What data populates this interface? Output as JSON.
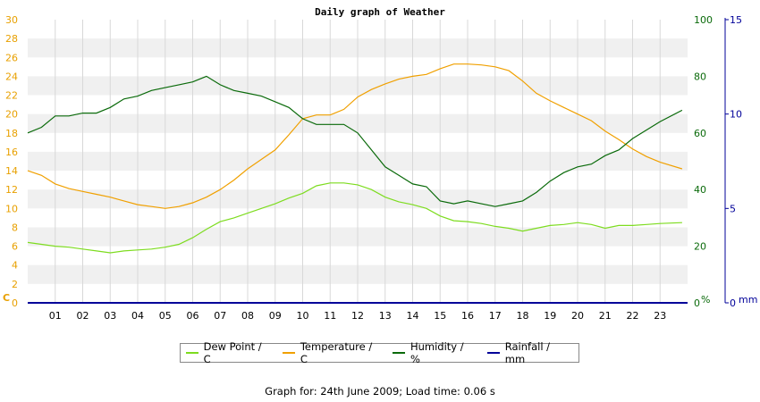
{
  "chart_data": {
    "type": "line",
    "title": "Daily graph of Weather",
    "x_ticks": [
      "01",
      "02",
      "03",
      "04",
      "05",
      "06",
      "07",
      "08",
      "09",
      "10",
      "11",
      "12",
      "13",
      "14",
      "15",
      "16",
      "17",
      "18",
      "19",
      "20",
      "21",
      "22",
      "23"
    ],
    "x_range": [
      0,
      24
    ],
    "grid": true,
    "legend_position": "bottom-center",
    "axes": {
      "left": {
        "unit_label": "C",
        "range": [
          0,
          30
        ],
        "ticks": [
          "0",
          "2",
          "4",
          "6",
          "8",
          "10",
          "12",
          "14",
          "16",
          "18",
          "20",
          "22",
          "24",
          "26",
          "28",
          "30"
        ],
        "color": "#e8a000"
      },
      "right1": {
        "unit_label": "%",
        "range": [
          0,
          100
        ],
        "ticks": [
          "0",
          "20",
          "40",
          "60",
          "80",
          "100"
        ],
        "color": "#0a6a0a"
      },
      "right2": {
        "unit_label": "mm",
        "range": [
          0,
          15
        ],
        "ticks": [
          "0",
          "5",
          "10",
          "15"
        ],
        "color": "#000099"
      }
    },
    "series": [
      {
        "name": "Dew Point / C",
        "axis": "left",
        "color": "#7ddc1f",
        "x": [
          0,
          0.5,
          1,
          1.5,
          2,
          2.5,
          3,
          3.5,
          4,
          4.5,
          5,
          5.5,
          6,
          6.5,
          7,
          7.5,
          8,
          8.5,
          9,
          9.5,
          10,
          10.5,
          11,
          11.5,
          12,
          12.5,
          13,
          13.5,
          14,
          14.5,
          15,
          15.5,
          16,
          16.5,
          17,
          17.5,
          18,
          18.5,
          19,
          19.5,
          20,
          20.5,
          21,
          21.5,
          22,
          22.5,
          23,
          23.8
        ],
        "y": [
          6.4,
          6.2,
          6.0,
          5.9,
          5.7,
          5.5,
          5.3,
          5.5,
          5.6,
          5.7,
          5.9,
          6.2,
          6.9,
          7.8,
          8.6,
          9.0,
          9.5,
          10.0,
          10.5,
          11.1,
          11.6,
          12.4,
          12.7,
          12.7,
          12.5,
          12.0,
          11.2,
          10.7,
          10.4,
          10.0,
          9.2,
          8.7,
          8.6,
          8.4,
          8.1,
          7.9,
          7.6,
          7.9,
          8.2,
          8.3,
          8.5,
          8.3,
          7.9,
          8.2,
          8.2,
          8.3,
          8.4,
          8.5
        ]
      },
      {
        "name": "Temperature / C",
        "axis": "left",
        "color": "#f0a000",
        "x": [
          0,
          0.5,
          1,
          1.5,
          2,
          2.5,
          3,
          3.5,
          4,
          4.5,
          5,
          5.5,
          6,
          6.5,
          7,
          7.5,
          8,
          8.5,
          9,
          9.5,
          10,
          10.5,
          11,
          11.5,
          12,
          12.5,
          13,
          13.5,
          14,
          14.5,
          15,
          15.5,
          16,
          16.5,
          17,
          17.5,
          18,
          18.5,
          19,
          19.5,
          20,
          20.5,
          21,
          21.5,
          22,
          22.5,
          23,
          23.8
        ],
        "y": [
          14.0,
          13.5,
          12.6,
          12.1,
          11.8,
          11.5,
          11.2,
          10.8,
          10.4,
          10.2,
          10.0,
          10.2,
          10.6,
          11.2,
          12.0,
          13.0,
          14.2,
          15.2,
          16.2,
          17.8,
          19.5,
          19.9,
          19.9,
          20.5,
          21.8,
          22.6,
          23.2,
          23.7,
          24.0,
          24.2,
          24.8,
          25.3,
          25.3,
          25.2,
          25.0,
          24.6,
          23.5,
          22.2,
          21.4,
          20.7,
          20.0,
          19.3,
          18.2,
          17.3,
          16.3,
          15.5,
          14.9,
          14.2
        ]
      },
      {
        "name": "Humidity / %",
        "axis": "right1",
        "color": "#0a6a0a",
        "x": [
          0,
          0.5,
          1,
          1.5,
          2,
          2.5,
          3,
          3.5,
          4,
          4.5,
          5,
          5.5,
          6,
          6.5,
          7,
          7.5,
          8,
          8.5,
          9,
          9.5,
          10,
          10.5,
          11,
          11.5,
          12,
          12.5,
          13,
          13.5,
          14,
          14.5,
          15,
          15.5,
          16,
          16.5,
          17,
          17.5,
          18,
          18.5,
          19,
          19.5,
          20,
          20.5,
          21,
          21.5,
          22,
          22.5,
          23,
          23.8
        ],
        "y": [
          60,
          62,
          66,
          66,
          67,
          67,
          69,
          72,
          73,
          75,
          76,
          77,
          78,
          80,
          77,
          75,
          74,
          73,
          71,
          69,
          65,
          63,
          63,
          63,
          60,
          54,
          48,
          45,
          42,
          41,
          36,
          35,
          36,
          35,
          34,
          35,
          36,
          39,
          43,
          46,
          48,
          49,
          52,
          54,
          58,
          61,
          64,
          68
        ]
      },
      {
        "name": "Rainfall / mm",
        "axis": "right2",
        "color": "#000099",
        "x": [
          0,
          23.8
        ],
        "y": [
          0,
          0
        ]
      }
    ]
  },
  "footer": "Graph for: 24th June 2009; Load time: 0.06 s"
}
